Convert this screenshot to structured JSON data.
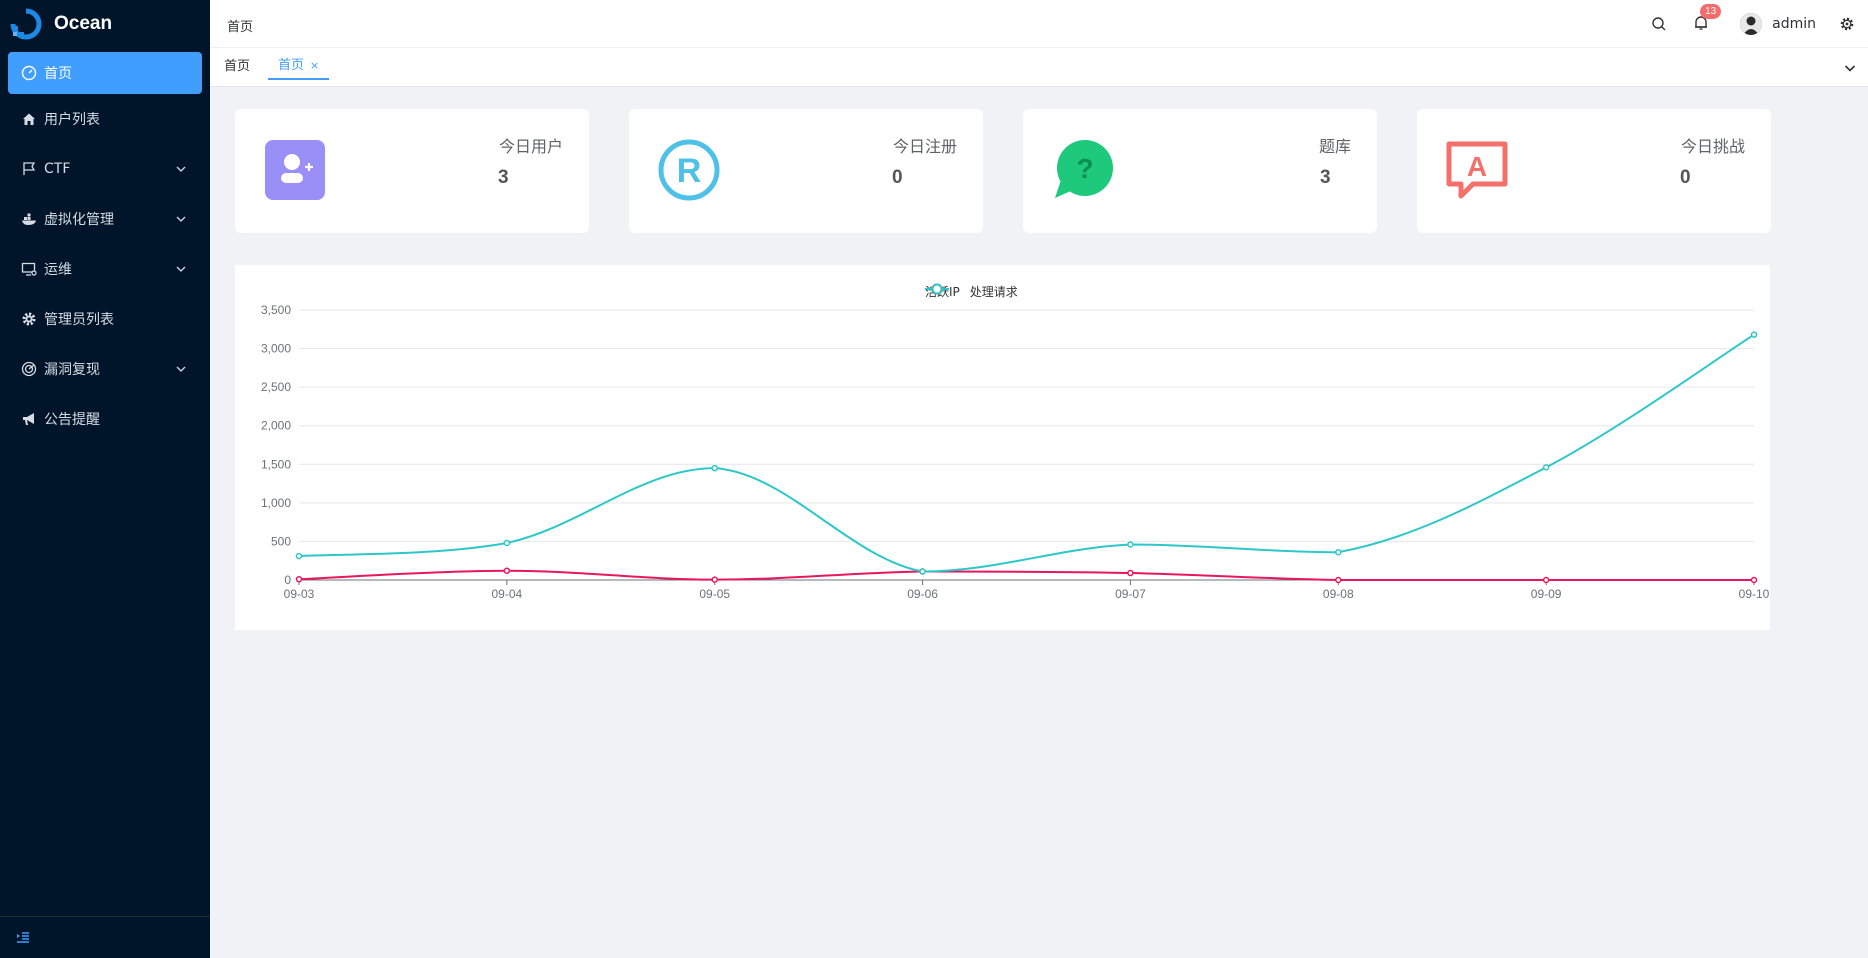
{
  "app": {
    "name": "Ocean"
  },
  "sidebar": {
    "items": [
      {
        "label": "首页",
        "icon": "dashboard-icon",
        "active": true,
        "expandable": false
      },
      {
        "label": "用户列表",
        "icon": "home-icon",
        "active": false,
        "expandable": false
      },
      {
        "label": "CTF",
        "icon": "flag-icon",
        "active": false,
        "expandable": true
      },
      {
        "label": "虚拟化管理",
        "icon": "docker-icon",
        "active": false,
        "expandable": true
      },
      {
        "label": "运维",
        "icon": "monitor-icon",
        "active": false,
        "expandable": true
      },
      {
        "label": "管理员列表",
        "icon": "gear-icon",
        "active": false,
        "expandable": false
      },
      {
        "label": "漏洞复现",
        "icon": "radar-icon",
        "active": false,
        "expandable": true
      },
      {
        "label": "公告提醒",
        "icon": "megaphone-icon",
        "active": false,
        "expandable": false
      }
    ],
    "collapse_icon": "menu-fold-icon"
  },
  "header": {
    "breadcrumb": "首页",
    "notification_count": "13",
    "username": "admin"
  },
  "tabs": {
    "home": "首页",
    "active": "首页",
    "close": "×"
  },
  "cards": [
    {
      "title": "今日用户",
      "value": "3",
      "icon": "user-add-icon",
      "color": "#9a8ff6"
    },
    {
      "title": "今日注册",
      "value": "0",
      "icon": "registered-icon",
      "color": "#4fc0e8"
    },
    {
      "title": "题库",
      "value": "3",
      "icon": "question-chat-icon",
      "color": "#1ec97b"
    },
    {
      "title": "今日挑战",
      "value": "0",
      "icon": "message-a-icon",
      "color": "#f4716b"
    }
  ],
  "chart_data": {
    "type": "line",
    "categories": [
      "09-03",
      "09-04",
      "09-05",
      "09-06",
      "09-07",
      "09-08",
      "09-09",
      "09-10"
    ],
    "series": [
      {
        "name": "活跃IP",
        "color": "#e8175d",
        "values": [
          10,
          120,
          5,
          110,
          90,
          0,
          0,
          0
        ]
      },
      {
        "name": "处理请求",
        "color": "#2ec7c9",
        "values": [
          310,
          480,
          1450,
          110,
          460,
          360,
          1460,
          3180
        ]
      }
    ],
    "ylim": [
      0,
      3500
    ],
    "yticks": [
      "0",
      "500",
      "1,000",
      "1,500",
      "2,000",
      "2,500",
      "3,000",
      "3,500"
    ],
    "grid": true,
    "legend": "top-center",
    "smooth": true
  }
}
